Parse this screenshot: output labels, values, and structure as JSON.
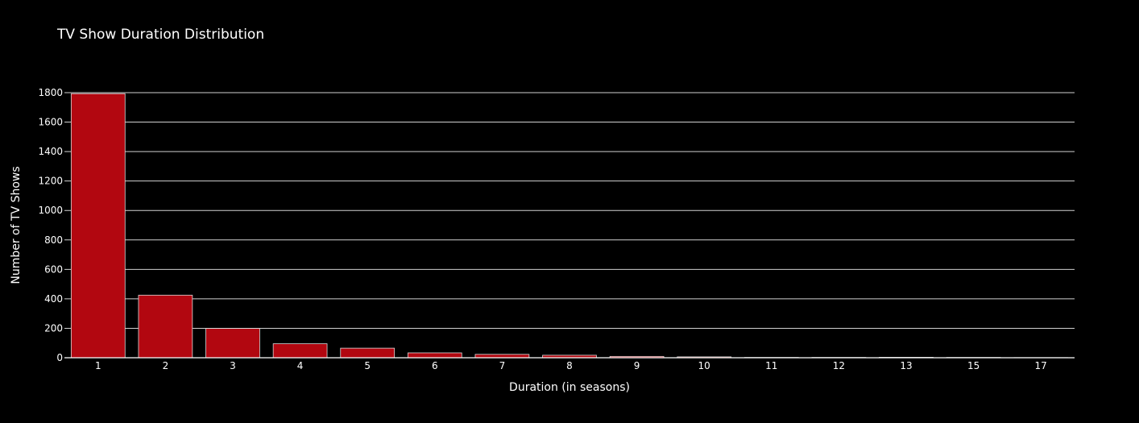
{
  "chart_data": {
    "type": "bar",
    "title": "TV Show Duration Distribution",
    "xlabel": "Duration (in seasons)",
    "ylabel": "Number of TV Shows",
    "categories": [
      "1",
      "2",
      "3",
      "4",
      "5",
      "6",
      "7",
      "8",
      "9",
      "10",
      "11",
      "12",
      "13",
      "15",
      "17"
    ],
    "values": [
      1793,
      425,
      199,
      95,
      65,
      33,
      23,
      17,
      9,
      6,
      2,
      2,
      3,
      2,
      1
    ],
    "ylim": [
      0,
      1800
    ],
    "yticks": [
      0,
      200,
      400,
      600,
      800,
      1000,
      1200,
      1400,
      1600,
      1800
    ],
    "grid": true,
    "colors": {
      "background": "#000000",
      "bar": "#b20710",
      "bar_outline": "#d9d9d9",
      "grid": "#d0d0d0",
      "text": "#ffffff"
    }
  }
}
